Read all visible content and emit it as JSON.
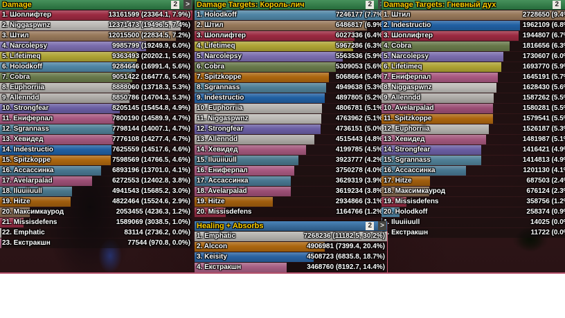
{
  "panels": [
    {
      "id": "damage",
      "title": "Damage",
      "page_badge": "2",
      "next_label": ">",
      "header_color": "green",
      "rows": [
        {
          "label": "1. Шоплифтер",
          "value": "13161599 (23364.1, 7.9%)",
          "pct": 100,
          "color": "#9B2A41"
        },
        {
          "label": "2. Niggaspwnz",
          "value": "12371473 (19496.5, 7.4%)",
          "pct": 94,
          "color": "#BCBAB6"
        },
        {
          "label": "3. Штил",
          "value": "12015500 (22834.5, 7.2%)",
          "pct": 91.3,
          "color": "#97785A"
        },
        {
          "label": "4. Narcolepsy",
          "value": "9985799 (19249.9, 6.0%)",
          "pct": 75.9,
          "color": "#7A6DAD"
        },
        {
          "label": "5. Lifetimeq",
          "value": "9363493 (20202.1, 5.6%)",
          "pct": 71.1,
          "color": "#AEA334"
        },
        {
          "label": "6. Holodkoff",
          "value": "9284646 (16991.4, 5.6%)",
          "pct": 70.5,
          "color": "#4F85A5"
        },
        {
          "label": "7. Cobra",
          "value": "9051422 (16477.6, 5.4%)",
          "pct": 68.8,
          "color": "#68794A"
        },
        {
          "label": "8. Euphorriia",
          "value": "8888060 (13718.3, 5.3%)",
          "pct": 67.5,
          "color": "#B3B1AD"
        },
        {
          "label": "9. Allenndd",
          "value": "8850786 (14704.3, 5.3%)",
          "pct": 67.2,
          "color": "#ADAAA6"
        },
        {
          "label": "10. Strongfear",
          "value": "8205145 (15454.8, 4.9%)",
          "pct": 62.3,
          "color": "#6A5EA3"
        },
        {
          "label": "11. Ениферпал",
          "value": "7800190 (14589.9, 4.7%)",
          "pct": 59.3,
          "color": "#A85880"
        },
        {
          "label": "12. Sgrannass",
          "value": "7798144 (14007.1, 4.7%)",
          "pct": 59.2,
          "color": "#4F7F96"
        },
        {
          "label": "13. Хевидед",
          "value": "7776108 (14277.4, 4.7%)",
          "pct": 59.1,
          "color": "#A3577C"
        },
        {
          "label": "14. Indestructio",
          "value": "7625559 (14517.6, 4.6%)",
          "pct": 57.9,
          "color": "#2160A2"
        },
        {
          "label": "15. Spitzkoppe",
          "value": "7598569 (14766.5, 4.6%)",
          "pct": 57.7,
          "color": "#AC660F"
        },
        {
          "label": "16. Ассассинка",
          "value": "6893196 (13701.0, 4.1%)",
          "pct": 52.4,
          "color": "#477690"
        },
        {
          "label": "17. Avelarpalad",
          "value": "6272553 (12402.8, 3.8%)",
          "pct": 47.7,
          "color": "#9B4E74"
        },
        {
          "label": "18. Iluuiiuull",
          "value": "4941543 (15685.2, 3.0%)",
          "pct": 37.5,
          "color": "#49768B"
        },
        {
          "label": "19. Hitze",
          "value": "4822464 (15524.6, 2.9%)",
          "pct": 36.6,
          "color": "#A05E0E"
        },
        {
          "label": "20. Максимкаурод",
          "value": "2053455 (4236.3, 1.2%)",
          "pct": 15.6,
          "color": "#83684E"
        },
        {
          "label": "21. Missisdefens",
          "value": "1589069 (3038.5, 1.0%)",
          "pct": 12.1,
          "color": "#942B43"
        },
        {
          "label": "22. Emphatic",
          "value": "83114 (2736.2, 0.0%)",
          "pct": 0.8,
          "color": "#B3B1AD"
        },
        {
          "label": "23. Екстракшн",
          "value": "77544 (970.8, 0.0%)",
          "pct": 0.8,
          "color": "#A65E82"
        }
      ]
    },
    {
      "id": "damage-targets-lich-king",
      "title": "Damage Targets: Король-лич",
      "page_badge": "2",
      "next_label": ">",
      "header_color": "green",
      "rows": [
        {
          "label": "1. Holodkoff",
          "value": "7246177 (7.7%)",
          "pct": 100,
          "color": "#4F85A5"
        },
        {
          "label": "2. Штил",
          "value": "6486817 (6.9%)",
          "pct": 89.5,
          "color": "#97785A"
        },
        {
          "label": "3. Шоплифтер",
          "value": "6027336 (6.4%)",
          "pct": 83.2,
          "color": "#9B2A41"
        },
        {
          "label": "4. Lifetimeq",
          "value": "5967286 (6.3%)",
          "pct": 82.4,
          "color": "#AEA334"
        },
        {
          "label": "5. Narcolepsy",
          "value": "5563536 (5.9%)",
          "pct": 76.8,
          "color": "#7A6DAD"
        },
        {
          "label": "6. Cobra",
          "value": "5309053 (5.6%)",
          "pct": 73.3,
          "color": "#68794A"
        },
        {
          "label": "7. Spitzkoppe",
          "value": "5068664 (5.4%)",
          "pct": 69.9,
          "color": "#AC660F"
        },
        {
          "label": "8. Sgrannass",
          "value": "4949638 (5.3%)",
          "pct": 68.3,
          "color": "#4F7F96"
        },
        {
          "label": "9. Indestructio",
          "value": "4897805 (5.2%)",
          "pct": 67.6,
          "color": "#2160A2"
        },
        {
          "label": "10. Euphorriia",
          "value": "4806781 (5.1%)",
          "pct": 66.3,
          "color": "#B3B1AD"
        },
        {
          "label": "11. Niggaspwnz",
          "value": "4763962 (5.1%)",
          "pct": 65.7,
          "color": "#BCBAB6"
        },
        {
          "label": "12. Strongfear",
          "value": "4736151 (5.0%)",
          "pct": 65.4,
          "color": "#6A5EA3"
        },
        {
          "label": "13. Allenndd",
          "value": "4515443 (4.8%)",
          "pct": 62.3,
          "color": "#ADAAA6"
        },
        {
          "label": "14. Хевидед",
          "value": "4199785 (4.5%)",
          "pct": 58.0,
          "color": "#A3577C"
        },
        {
          "label": "15. Iluuiiuull",
          "value": "3923777 (4.2%)",
          "pct": 54.1,
          "color": "#49768B"
        },
        {
          "label": "16. Ениферпал",
          "value": "3750278 (4.0%)",
          "pct": 51.8,
          "color": "#A85880"
        },
        {
          "label": "17. Ассассинка",
          "value": "3629319 (3.9%)",
          "pct": 50.1,
          "color": "#477690"
        },
        {
          "label": "18. Avelarpalad",
          "value": "3619234 (3.8%)",
          "pct": 49.9,
          "color": "#9B4E74"
        },
        {
          "label": "19. Hitze",
          "value": "2934866 (3.1%)",
          "pct": 40.5,
          "color": "#A05E0E"
        },
        {
          "label": "20. Missisdefens",
          "value": "1164766 (1.2%)",
          "pct": 16.1,
          "color": "#942B43"
        }
      ]
    },
    {
      "id": "damage-targets-wrathful-spirit",
      "title": "Damage Targets: Гневный дух",
      "page_badge": "2",
      "next_label": ">",
      "header_color": "green",
      "rows": [
        {
          "label": "1. Штил",
          "value": "2728650 (9.4%)",
          "pct": 100,
          "color": "#97785A"
        },
        {
          "label": "2. Indestructio",
          "value": "1962109 (6.8%)",
          "pct": 71.9,
          "color": "#2160A2"
        },
        {
          "label": "3. Шоплифтер",
          "value": "1944807 (6.7%)",
          "pct": 71.3,
          "color": "#9B2A41"
        },
        {
          "label": "4. Cobra",
          "value": "1816656 (6.3%)",
          "pct": 66.6,
          "color": "#68794A"
        },
        {
          "label": "5. Narcolepsy",
          "value": "1730607 (6.0%)",
          "pct": 63.4,
          "color": "#7A6DAD"
        },
        {
          "label": "6. Lifetimeq",
          "value": "1693770 (5.9%)",
          "pct": 62.1,
          "color": "#AEA334"
        },
        {
          "label": "7. Ениферпал",
          "value": "1645191 (5.7%)",
          "pct": 60.3,
          "color": "#A85880"
        },
        {
          "label": "8. Niggaspwnz",
          "value": "1628430 (5.6%)",
          "pct": 59.7,
          "color": "#BCBAB6"
        },
        {
          "label": "9. Allenndd",
          "value": "1587262 (5.5%)",
          "pct": 58.2,
          "color": "#ADAAA6"
        },
        {
          "label": "10. Avelarpalad",
          "value": "1580281 (5.5%)",
          "pct": 57.9,
          "color": "#9B4E74"
        },
        {
          "label": "11. Spitzkoppe",
          "value": "1579541 (5.5%)",
          "pct": 57.9,
          "color": "#AC660F"
        },
        {
          "label": "12. Euphorriia",
          "value": "1526187 (5.3%)",
          "pct": 55.9,
          "color": "#B3B1AD"
        },
        {
          "label": "13. Хевидед",
          "value": "1481987 (5.1%)",
          "pct": 54.3,
          "color": "#A3577C"
        },
        {
          "label": "14. Strongfear",
          "value": "1416421 (4.9%)",
          "pct": 51.9,
          "color": "#6A5EA3"
        },
        {
          "label": "15. Sgrannass",
          "value": "1414813 (4.9%)",
          "pct": 51.9,
          "color": "#4F7F96"
        },
        {
          "label": "16. Ассассинка",
          "value": "1201130 (4.1%)",
          "pct": 44.0,
          "color": "#477690"
        },
        {
          "label": "17. Hitze",
          "value": "687503 (2.4%)",
          "pct": 25.2,
          "color": "#A05E0E"
        },
        {
          "label": "18. Максимкаурод",
          "value": "676124 (2.3%)",
          "pct": 24.8,
          "color": "#83684E"
        },
        {
          "label": "19. Missisdefens",
          "value": "358756 (1.2%)",
          "pct": 13.1,
          "color": "#942B43"
        },
        {
          "label": "20. Holodkoff",
          "value": "258374 (0.9%)",
          "pct": 9.5,
          "color": "#4F85A5"
        },
        {
          "label": "1. Iluuiiuull",
          "value": "14025 (0.0%)",
          "pct": 0.5,
          "color": "#49768B"
        },
        {
          "label": "2. Екстракшн",
          "value": "11722 (0.0%)",
          "pct": 0.4,
          "color": "#A65E82"
        }
      ]
    },
    {
      "id": "healing-absorbs",
      "title": "Healing + Absorbs",
      "page_badge": "2",
      "next_label": ">",
      "header_color": "blue",
      "rows": [
        {
          "label": "1. Emphatic",
          "value": "7268236 (11182.5, 30.2%)",
          "pct": 100,
          "color": "#B3B1AD"
        },
        {
          "label": "2. Alccon",
          "value": "4906981 (7399.4, 20.4%)",
          "pct": 67.5,
          "color": "#AC660F"
        },
        {
          "label": "3. Keisity",
          "value": "4508723 (6835.8, 18.7%)",
          "pct": 62.0,
          "color": "#2A62A0"
        },
        {
          "label": "4. Екстракшн",
          "value": "3468760 (8192.7, 14.4%)",
          "pct": 47.7,
          "color": "#A65E82"
        }
      ]
    }
  ]
}
